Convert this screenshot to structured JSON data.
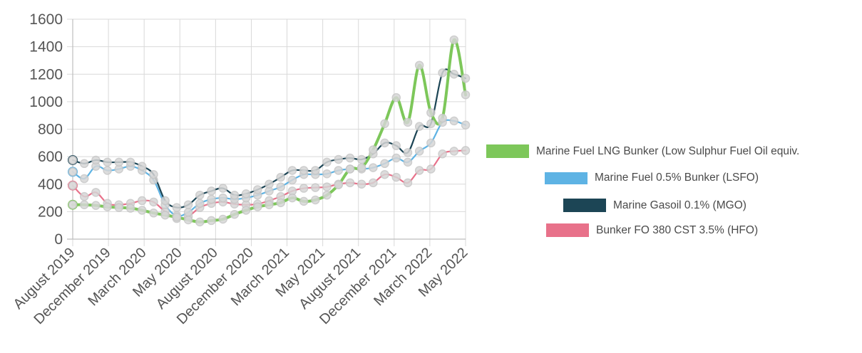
{
  "chart_data": {
    "type": "line",
    "title": "",
    "xlabel": "",
    "ylabel": "",
    "ylim": [
      0,
      1600
    ],
    "yticks": [
      0,
      200,
      400,
      600,
      800,
      1000,
      1200,
      1400,
      1600
    ],
    "grid": true,
    "legend_position": "right",
    "x_tick_labels": [
      "August 2019",
      "December 2019",
      "March 2020",
      "May 2020",
      "August 2020",
      "December 2020",
      "March 2021",
      "May 2021",
      "August 2021",
      "December 2021",
      "March 2022",
      "May 2022"
    ],
    "x": [
      "Aug 2019",
      "Sep 2019",
      "Oct 2019",
      "Nov 2019",
      "Dec 2019",
      "Jan 2020",
      "Feb 2020",
      "Mar 2020",
      "Apr 2020",
      "May 2020",
      "Jun 2020",
      "Jul 2020",
      "Aug 2020",
      "Sep 2020",
      "Oct 2020",
      "Nov 2020",
      "Dec 2020",
      "Jan 2021",
      "Feb 2021",
      "Mar 2021",
      "Apr 2021",
      "May 2021",
      "Jun 2021",
      "Jul 2021",
      "Aug 2021",
      "Sep 2021",
      "Oct 2021",
      "Nov 2021",
      "Dec 2021",
      "Jan 2022",
      "Feb 2022",
      "Mar 2022",
      "Apr 2022",
      "May 2022",
      "Jun 2022"
    ],
    "series": [
      {
        "name": "Marine Fuel LNG Bunker (Low Sulphur Fuel Oil equiv.",
        "color": "#7dc75a",
        "values": [
          250,
          250,
          245,
          235,
          230,
          225,
          210,
          190,
          175,
          160,
          140,
          125,
          135,
          145,
          180,
          210,
          235,
          250,
          265,
          300,
          275,
          285,
          320,
          395,
          510,
          520,
          650,
          840,
          1030,
          850,
          1265,
          920,
          880,
          1450,
          1050
        ]
      },
      {
        "name": "Marine Fuel 0.5% Bunker (LSFO)",
        "color": "#5eb3e4",
        "values": [
          490,
          440,
          530,
          500,
          510,
          530,
          500,
          430,
          250,
          170,
          195,
          260,
          290,
          300,
          290,
          300,
          320,
          350,
          380,
          430,
          470,
          470,
          475,
          500,
          510,
          510,
          520,
          550,
          590,
          560,
          640,
          700,
          850,
          860,
          830
        ]
      },
      {
        "name": "Marine Gasoil 0.1% (MGO)",
        "color": "#1c4555",
        "values": [
          575,
          550,
          575,
          560,
          560,
          560,
          530,
          470,
          280,
          230,
          250,
          320,
          350,
          370,
          320,
          330,
          360,
          400,
          450,
          500,
          500,
          500,
          560,
          580,
          590,
          580,
          620,
          700,
          680,
          630,
          820,
          840,
          1210,
          1200,
          1170
        ]
      },
      {
        "name": "Bunker FO 380 CST 3.5% (HFO)",
        "color": "#e8718a",
        "values": [
          390,
          310,
          340,
          260,
          250,
          260,
          280,
          270,
          200,
          150,
          165,
          230,
          260,
          270,
          255,
          250,
          255,
          280,
          310,
          350,
          370,
          375,
          380,
          400,
          410,
          400,
          410,
          470,
          450,
          410,
          500,
          510,
          620,
          640,
          645
        ]
      }
    ]
  }
}
